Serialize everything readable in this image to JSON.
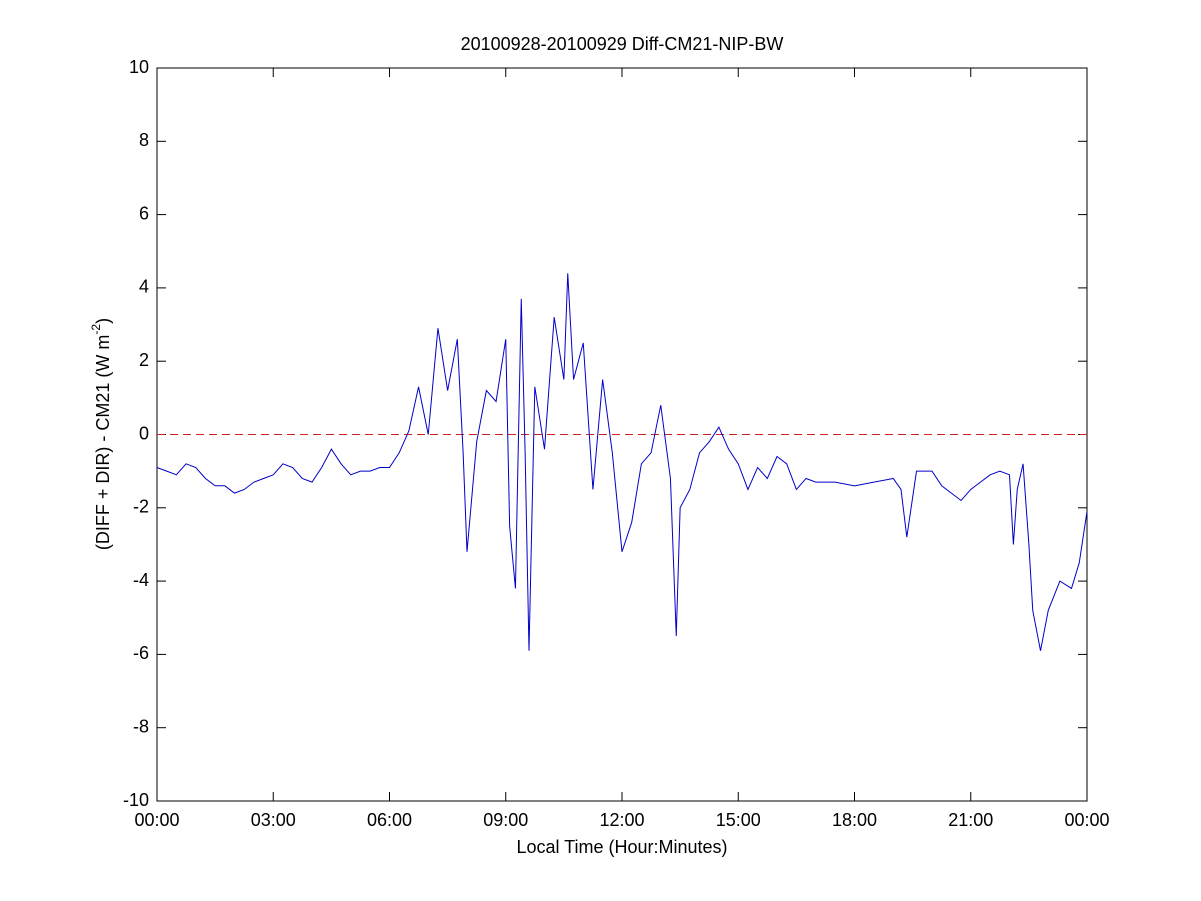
{
  "chart_data": {
    "type": "line",
    "title": "20100928-20100929 Diff-CM21-NIP-BW",
    "xlabel": "Local Time (Hour:Minutes)",
    "ylabel": [
      "(DIFF + DIR) - CM21 (W m",
      "-2",
      ")"
    ],
    "x": [
      0,
      0.25,
      0.5,
      0.75,
      1,
      1.25,
      1.5,
      1.75,
      2,
      2.25,
      2.5,
      2.75,
      3,
      3.25,
      3.5,
      3.75,
      4,
      4.25,
      4.5,
      4.75,
      5,
      5.25,
      5.5,
      5.75,
      6,
      6.25,
      6.5,
      6.75,
      7,
      7.25,
      7.5,
      7.75,
      7.9,
      8,
      8.25,
      8.5,
      8.75,
      9,
      9.1,
      9.25,
      9.4,
      9.5,
      9.6,
      9.75,
      10,
      10.25,
      10.5,
      10.6,
      10.75,
      11,
      11.25,
      11.5,
      11.75,
      12,
      12.25,
      12.5,
      12.75,
      13,
      13.25,
      13.4,
      13.5,
      13.75,
      14,
      14.25,
      14.5,
      14.75,
      15,
      15.25,
      15.5,
      15.75,
      16,
      16.25,
      16.5,
      16.75,
      17,
      17.5,
      18,
      18.5,
      19,
      19.2,
      19.35,
      19.6,
      20,
      20.25,
      20.5,
      20.75,
      21,
      21.25,
      21.5,
      21.75,
      22,
      22.1,
      22.2,
      22.35,
      22.5,
      22.6,
      22.8,
      23,
      23.3,
      23.6,
      23.8,
      24
    ],
    "series": [
      {
        "name": "Diff-CM21-NIP-BW",
        "color": "#0000c8",
        "values": [
          -0.9,
          -1.0,
          -1.1,
          -0.8,
          -0.9,
          -1.2,
          -1.4,
          -1.4,
          -1.6,
          -1.5,
          -1.3,
          -1.2,
          -1.1,
          -0.8,
          -0.9,
          -1.2,
          -1.3,
          -0.9,
          -0.4,
          -0.8,
          -1.1,
          -1.0,
          -1.0,
          -0.9,
          -0.9,
          -0.5,
          0.1,
          1.3,
          0.0,
          2.9,
          1.2,
          2.6,
          -0.5,
          -3.2,
          -0.2,
          1.2,
          0.9,
          2.6,
          -2.5,
          -4.2,
          3.7,
          -0.5,
          -5.9,
          1.3,
          -0.4,
          3.2,
          1.5,
          4.4,
          1.5,
          2.5,
          -1.5,
          1.5,
          -0.5,
          -3.2,
          -2.4,
          -0.8,
          -0.5,
          0.8,
          -1.2,
          -5.5,
          -2.0,
          -1.5,
          -0.5,
          -0.2,
          0.2,
          -0.4,
          -0.8,
          -1.5,
          -0.9,
          -1.2,
          -0.6,
          -0.8,
          -1.5,
          -1.2,
          -1.3,
          -1.3,
          -1.4,
          -1.3,
          -1.2,
          -1.5,
          -2.8,
          -1.0,
          -1.0,
          -1.4,
          -1.6,
          -1.8,
          -1.5,
          -1.3,
          -1.1,
          -1.0,
          -1.1,
          -3.0,
          -1.5,
          -0.8,
          -3.0,
          -4.8,
          -5.9,
          -4.8,
          -4.0,
          -4.2,
          -3.5,
          -2.1
        ]
      }
    ],
    "reference_line": {
      "value": 0,
      "color": "#cc2222",
      "dash": true
    },
    "xlim": [
      0,
      24
    ],
    "xticks": [
      {
        "value": 0,
        "label": "00:00"
      },
      {
        "value": 3,
        "label": "03:00"
      },
      {
        "value": 6,
        "label": "06:00"
      },
      {
        "value": 9,
        "label": "09:00"
      },
      {
        "value": 12,
        "label": "12:00"
      },
      {
        "value": 15,
        "label": "15:00"
      },
      {
        "value": 18,
        "label": "18:00"
      },
      {
        "value": 21,
        "label": "21:00"
      },
      {
        "value": 24,
        "label": "00:00"
      }
    ],
    "ylim": [
      -10,
      10
    ],
    "yticks": [
      -10,
      -8,
      -6,
      -4,
      -2,
      0,
      2,
      4,
      6,
      8,
      10
    ],
    "grid": false
  }
}
